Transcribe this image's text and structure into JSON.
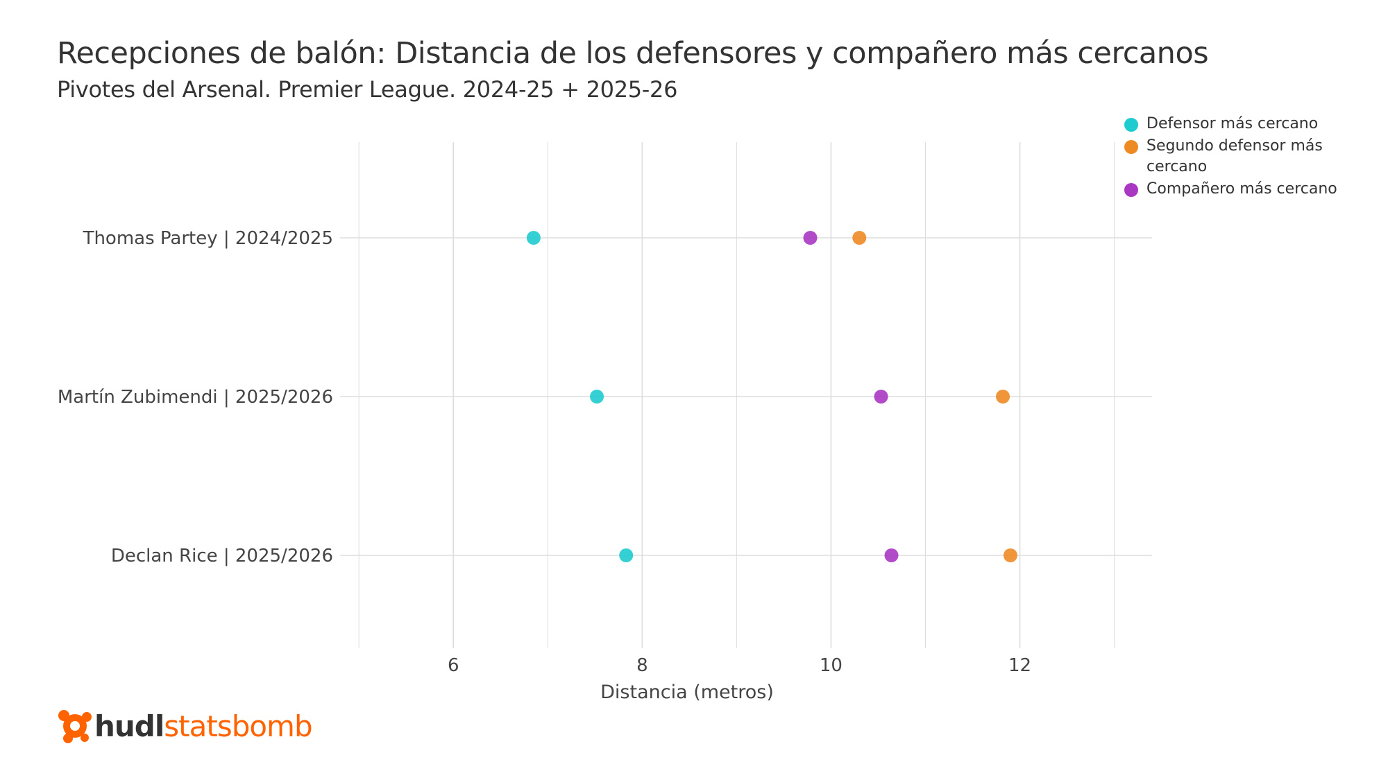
{
  "chart_data": {
    "type": "scatter",
    "title": "Recepciones de balón: Distancia de los defensores y compañero más cercanos",
    "subtitle": "Pivotes del Arsenal. Premier League. 2024-25 + 2025-26",
    "xlabel": "Distancia (metros)",
    "ylabel": "",
    "xlim": [
      4.8,
      13.4
    ],
    "x_ticks": [
      6,
      8,
      10,
      12
    ],
    "categories": [
      "Thomas Partey | 2024/2025",
      "Martín Zubimendi | 2025/2026",
      "Declan Rice | 2025/2026"
    ],
    "series": [
      {
        "name": "Defensor más cercano",
        "color": "#1ecbcf",
        "values": [
          6.85,
          7.52,
          7.83
        ]
      },
      {
        "name": "Segundo defensor más cercano",
        "color": "#ee8a24",
        "values": [
          10.3,
          11.82,
          11.9
        ]
      },
      {
        "name": "Compañero más cercano",
        "color": "#a937c2",
        "values": [
          9.78,
          10.53,
          10.64
        ]
      }
    ],
    "grid": true,
    "legend_position": "top-right"
  },
  "legend_labels": [
    "Defensor más cercano",
    "Segundo defensor más\ncercano",
    "Compañero más cercano"
  ],
  "logo": {
    "hudl": "hudl",
    "statsbomb": "statsbomb"
  },
  "colors": {
    "grid": "#dddddd",
    "text": "#333333",
    "brand": "#ff6300"
  }
}
